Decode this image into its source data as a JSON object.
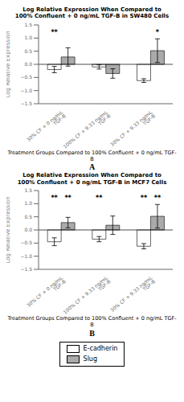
{
  "chart_data": [
    {
      "type": "bar",
      "title": "Log Relative Expression When Compared to\n100% Confluent + 0 ng/mL TGF-B in SW480 Cells",
      "xlabel": "Treatment Groups Compared to 100% Confluent + 0 ng/mL TGF-B",
      "ylabel": "Log Relative Expression",
      "categories": [
        "30% CF + 0 ng/mL TGF-B",
        "100% CF + 9.33 ng/mL TGF-B",
        "30% CF + 9.33 ng/mL TGF-B"
      ],
      "series": [
        {
          "name": "E-cadherin",
          "color": "#ffffff",
          "values": [
            -0.2,
            -0.1,
            -0.62
          ],
          "errors": [
            0.12,
            0.08,
            0.07
          ],
          "annotations": [
            "**",
            null,
            null
          ]
        },
        {
          "name": "Slug",
          "color": "#aaaaaa",
          "values": [
            0.28,
            -0.35,
            0.52
          ],
          "errors": [
            0.35,
            0.18,
            0.45
          ],
          "annotations": [
            null,
            null,
            "*"
          ]
        }
      ],
      "ylim": [
        -1.5,
        1.5
      ],
      "yticks": [
        {
          "value": -1.5,
          "label": "−1.5"
        },
        {
          "value": -1.0,
          "label": "−1.0"
        },
        {
          "value": -0.5,
          "label": "−0.5"
        },
        {
          "value": 0.0,
          "label": "0.0"
        },
        0.5,
        {
          "value": 1.0,
          "label": "1.0"
        },
        1.5
      ],
      "grid": false,
      "annotations": [
        "A"
      ]
    },
    {
      "type": "bar",
      "title": "Log Relative Expression When Compared to\n100% Confluent + 0 ng/mL TGF-B in MCF7 Cells",
      "xlabel": "Treatment Groups Compared to 100% Confluent + 0 ng/mL TGF-B",
      "ylabel": "Log Relative Expression",
      "categories": [
        "30% CF + 0 ng/mL TGF-B",
        "100% CF + 9.33 ng/mL TGF-B",
        "30% CF + 9.33 ng/mL TGF-B"
      ],
      "series": [
        {
          "name": "E-cadherin",
          "color": "#ffffff",
          "values": [
            -0.45,
            -0.35,
            -0.62
          ],
          "errors": [
            0.15,
            0.1,
            0.1
          ],
          "annotations": [
            "**",
            "**",
            "**"
          ]
        },
        {
          "name": "Slug",
          "color": "#aaaaaa",
          "values": [
            0.28,
            0.18,
            0.52
          ],
          "errors": [
            0.2,
            0.35,
            0.45
          ],
          "annotations": [
            "**",
            null,
            "**"
          ]
        }
      ],
      "ylim": [
        -1.5,
        1.5
      ],
      "yticks": [
        {
          "value": -1.5,
          "label": "−1.5"
        },
        {
          "value": -1.0,
          "label": "−1.0"
        },
        {
          "value": -0.5,
          "label": "−0.5"
        },
        {
          "value": 0.0,
          "label": "0.0"
        },
        0.5,
        {
          "value": 1.0,
          "label": "1.0"
        },
        1.5
      ],
      "grid": false,
      "legend": "bottom",
      "annotations": [
        "B"
      ]
    }
  ]
}
